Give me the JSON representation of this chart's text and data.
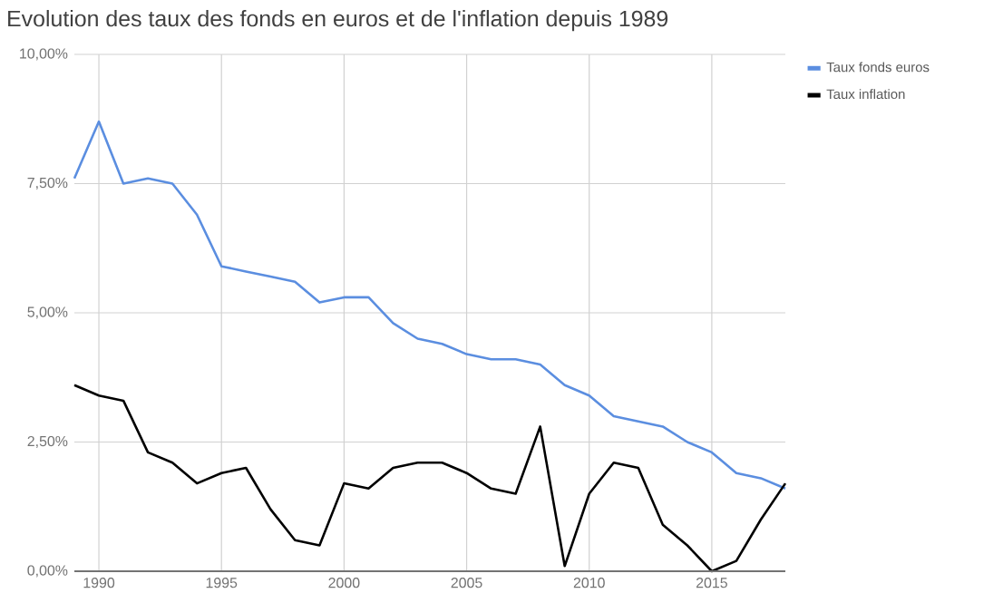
{
  "chart_data": {
    "type": "line",
    "title": "Evolution des taux des fonds en euros et de l'inflation depuis 1989",
    "x": [
      1989,
      1990,
      1991,
      1992,
      1993,
      1994,
      1995,
      1996,
      1997,
      1998,
      1999,
      2000,
      2001,
      2002,
      2003,
      2004,
      2005,
      2006,
      2007,
      2008,
      2009,
      2010,
      2011,
      2012,
      2013,
      2014,
      2015,
      2016,
      2017,
      2018
    ],
    "series": [
      {
        "name": "Taux fonds euros",
        "color": "#5b8ee0",
        "values": [
          7.6,
          8.7,
          7.5,
          7.6,
          7.5,
          6.9,
          5.9,
          5.8,
          5.7,
          5.6,
          5.2,
          5.3,
          5.3,
          4.8,
          4.5,
          4.4,
          4.2,
          4.1,
          4.1,
          4.0,
          3.6,
          3.4,
          3.0,
          2.9,
          2.8,
          2.5,
          2.3,
          1.9,
          1.8,
          1.6
        ]
      },
      {
        "name": "Taux inflation",
        "color": "#000000",
        "values": [
          3.6,
          3.4,
          3.3,
          2.3,
          2.1,
          1.7,
          1.9,
          2.0,
          1.2,
          0.6,
          0.5,
          1.7,
          1.6,
          2.0,
          2.1,
          2.1,
          1.9,
          1.6,
          1.5,
          2.8,
          0.1,
          1.5,
          2.1,
          2.0,
          0.9,
          0.5,
          0.0,
          0.2,
          1.0,
          1.7
        ]
      }
    ],
    "xlim": [
      1989,
      2018
    ],
    "xticks": [
      1990,
      1995,
      2000,
      2005,
      2010,
      2015
    ],
    "ylim": [
      0,
      10
    ],
    "yticks": [
      {
        "value": 0,
        "label": "0,00%"
      },
      {
        "value": 2.5,
        "label": "2,50%"
      },
      {
        "value": 5,
        "label": "5,00%"
      },
      {
        "value": 7.5,
        "label": "7,50%"
      },
      {
        "value": 10,
        "label": "10,00%"
      }
    ],
    "grid": true,
    "legend": "top right",
    "marker": "none",
    "line_style": "solid"
  }
}
